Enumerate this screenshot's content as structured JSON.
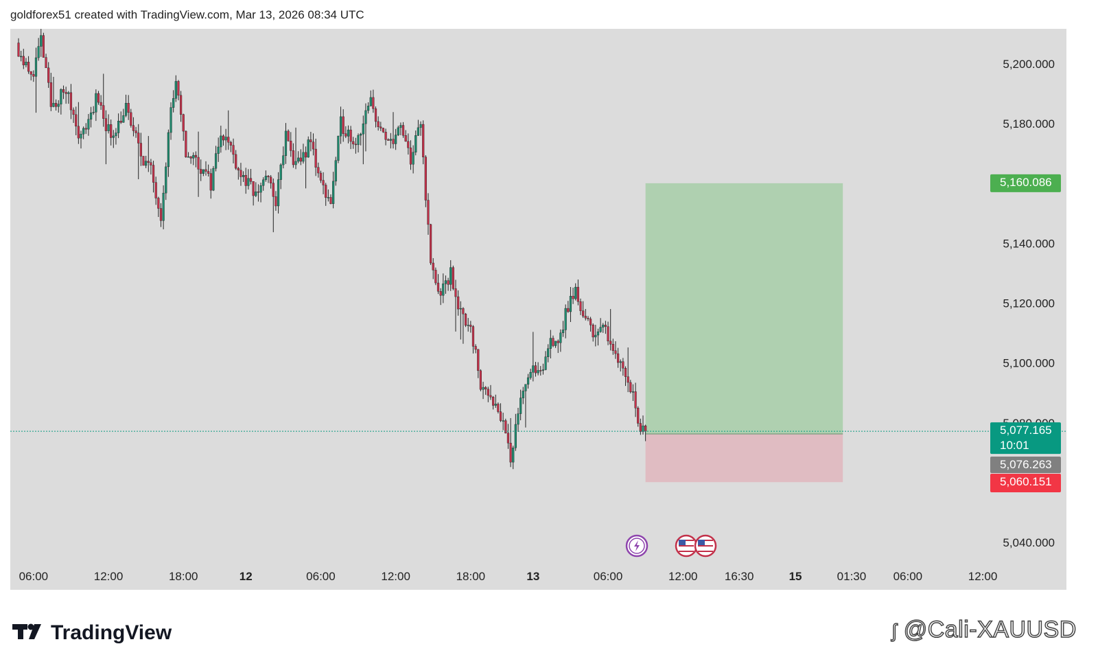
{
  "header": {
    "text": "goldforex51 created with TradingView.com, Mar 13, 2026 08:34 UTC"
  },
  "brand": {
    "wordmark": "TradingView"
  },
  "watermark": {
    "text": "@Cali-XAUUSD",
    "icon": "social-logo-icon"
  },
  "colors": {
    "chart_bg": "#dcdcdc",
    "bull": "#1f8a6e",
    "bear": "#c2314a",
    "target_zone": "#afd0b0",
    "stop_zone": "#e0bcc2",
    "target_label": "#4caf50",
    "current_label": "#089981",
    "entry_label": "#808080",
    "stop_label": "#f23645"
  },
  "events": [
    {
      "name": "lightning-event-icon",
      "color": "#8e44ad"
    },
    {
      "name": "us-flag-event-icon",
      "color": "#c2314a"
    },
    {
      "name": "us-flag-event-icon",
      "color": "#c2314a"
    }
  ],
  "chart_data": {
    "type": "candlestick",
    "symbol": "XAUUSD",
    "ylim": [
      5030,
      5210
    ],
    "y_ticks": [
      {
        "value": 5200,
        "label": "5,200.000"
      },
      {
        "value": 5180,
        "label": "5,180.000"
      },
      {
        "value": 5140,
        "label": "5,140.000"
      },
      {
        "value": 5120,
        "label": "5,120.000"
      },
      {
        "value": 5100,
        "label": "5,100.000"
      },
      {
        "value": 5080,
        "label": "5,080.000"
      },
      {
        "value": 5040,
        "label": "5,040.000"
      }
    ],
    "x_ticks": [
      {
        "label": "06:00",
        "bold": false,
        "slot": 6
      },
      {
        "label": "12:00",
        "bold": false,
        "slot": 36
      },
      {
        "label": "18:00",
        "bold": false,
        "slot": 66
      },
      {
        "label": "12",
        "bold": true,
        "slot": 91
      },
      {
        "label": "06:00",
        "bold": false,
        "slot": 121
      },
      {
        "label": "12:00",
        "bold": false,
        "slot": 151
      },
      {
        "label": "18:00",
        "bold": false,
        "slot": 181
      },
      {
        "label": "13",
        "bold": true,
        "slot": 206
      },
      {
        "label": "06:00",
        "bold": false,
        "slot": 236
      },
      {
        "label": "12:00",
        "bold": false,
        "slot": 266
      },
      {
        "label": "16:30",
        "bold": false,
        "slot": 288.5
      },
      {
        "label": "15",
        "bold": true,
        "slot": 311
      },
      {
        "label": "01:30",
        "bold": false,
        "slot": 333.5
      },
      {
        "label": "06:00",
        "bold": false,
        "slot": 356
      },
      {
        "label": "12:00",
        "bold": false,
        "slot": 386
      }
    ],
    "price_labels": {
      "target": {
        "value": 5160.086,
        "label": "5,160.086"
      },
      "current": {
        "value": 5077.165,
        "label": "5,077.165",
        "countdown": "10:01"
      },
      "entry": {
        "value": 5076.263,
        "label": "5,076.263"
      },
      "stop": {
        "value": 5060.151,
        "label": "5,060.151"
      }
    },
    "position": {
      "type": "long",
      "entry": 5076.263,
      "target": 5160.086,
      "stop": 5060.151,
      "start_slot": 251,
      "end_slot": 330
    },
    "candles_path": [
      [
        0,
        5207
      ],
      [
        6,
        5195
      ],
      [
        10,
        5208
      ],
      [
        14,
        5186
      ],
      [
        20,
        5191
      ],
      [
        26,
        5175
      ],
      [
        32,
        5188
      ],
      [
        38,
        5176
      ],
      [
        44,
        5185
      ],
      [
        50,
        5170
      ],
      [
        54,
        5164
      ],
      [
        58,
        5150
      ],
      [
        62,
        5185
      ],
      [
        64,
        5193
      ],
      [
        68,
        5170
      ],
      [
        72,
        5168
      ],
      [
        78,
        5160
      ],
      [
        82,
        5178
      ],
      [
        86,
        5172
      ],
      [
        90,
        5163
      ],
      [
        96,
        5156
      ],
      [
        100,
        5163
      ],
      [
        104,
        5154
      ],
      [
        108,
        5176
      ],
      [
        112,
        5165
      ],
      [
        118,
        5174
      ],
      [
        122,
        5160
      ],
      [
        126,
        5154
      ],
      [
        130,
        5180
      ],
      [
        136,
        5174
      ],
      [
        142,
        5187
      ],
      [
        148,
        5173
      ],
      [
        154,
        5178
      ],
      [
        158,
        5168
      ],
      [
        162,
        5180
      ],
      [
        166,
        5133
      ],
      [
        170,
        5122
      ],
      [
        174,
        5130
      ],
      [
        178,
        5116
      ],
      [
        182,
        5113
      ],
      [
        186,
        5092
      ],
      [
        190,
        5090
      ],
      [
        196,
        5078
      ],
      [
        198,
        5065
      ],
      [
        202,
        5090
      ],
      [
        206,
        5098
      ],
      [
        210,
        5095
      ],
      [
        214,
        5108
      ],
      [
        218,
        5108
      ],
      [
        220,
        5117
      ],
      [
        224,
        5124
      ],
      [
        228,
        5114
      ],
      [
        232,
        5110
      ],
      [
        236,
        5111
      ],
      [
        240,
        5104
      ],
      [
        244,
        5096
      ],
      [
        248,
        5087
      ],
      [
        250,
        5077
      ],
      [
        251,
        5077
      ]
    ]
  }
}
